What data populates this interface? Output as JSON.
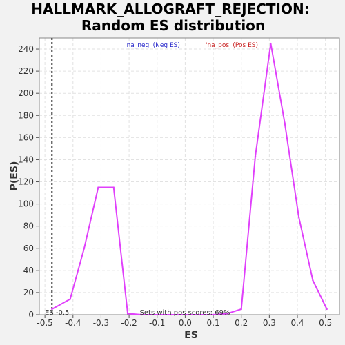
{
  "chart_data": {
    "type": "line",
    "title": "HALLMARK_ALLOGRAFT_REJECTION:",
    "subtitle": "Random ES distribution",
    "xlabel": "ES",
    "ylabel": "P(ES)",
    "xlim": [
      -0.52,
      0.55
    ],
    "ylim": [
      0,
      250
    ],
    "xticks": [
      -0.5,
      -0.4,
      -0.3,
      -0.2,
      -0.1,
      0.0,
      0.1,
      0.2,
      0.3,
      0.4,
      0.5
    ],
    "xtick_labels": [
      "-0.5",
      "-0.4",
      "-0.3",
      "-0.2",
      "-0.1",
      "0.0",
      "0.1",
      "0.2",
      "0.3",
      "0.4",
      "0.5"
    ],
    "yticks": [
      0,
      20,
      40,
      60,
      80,
      100,
      120,
      140,
      160,
      180,
      200,
      220,
      240
    ],
    "ytick_labels": [
      "0",
      "20",
      "40",
      "60",
      "80",
      "100",
      "120",
      "140",
      "160",
      "180",
      "200",
      "220",
      "240"
    ],
    "grid": true,
    "legend": [
      {
        "label": "'na_neg' (Neg ES)",
        "color": "#1f1fc8"
      },
      {
        "label": "'na_pos' (Pos ES)",
        "color": "#c81f1f"
      }
    ],
    "series": [
      {
        "color": "#e040fb",
        "x": [
          -0.475,
          -0.41,
          -0.36,
          -0.31,
          -0.255,
          -0.205,
          -0.155,
          -0.1,
          -0.05,
          0.0,
          0.05,
          0.1,
          0.15,
          0.2,
          0.25,
          0.305,
          0.355,
          0.405,
          0.455,
          0.505
        ],
        "y": [
          5,
          14,
          60,
          115,
          115,
          1,
          0,
          0,
          0,
          0,
          0,
          0,
          1,
          5,
          143,
          245,
          173,
          88,
          31,
          5
        ]
      }
    ],
    "vline": {
      "x": -0.475,
      "label": "ES -0.5"
    },
    "annotation": "Sets with pos scores: 69%"
  }
}
